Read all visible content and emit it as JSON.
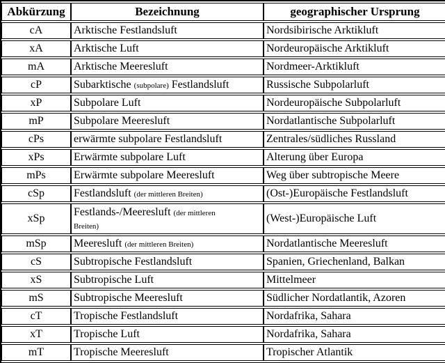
{
  "table": {
    "headers": [
      "Abkürzung",
      "Bezeichnung",
      "geographischer Ursprung"
    ],
    "rows": [
      {
        "abbr": "cA",
        "b1": "Arktische Festlandsluft",
        "bs": "",
        "b2": "",
        "origin": "Nordsibirische Arktikluft"
      },
      {
        "abbr": "xA",
        "b1": "Arktische Luft",
        "bs": "",
        "b2": "",
        "origin": "Nordeuropäische Arktikluft"
      },
      {
        "abbr": "mA",
        "b1": "Arktische Meeresluft",
        "bs": "",
        "b2": "",
        "origin": "Nordmeer-Arktikluft"
      },
      {
        "abbr": "cP",
        "b1": "Subarktische ",
        "bs": "(subpolare)",
        "b2": " Festlandsluft",
        "origin": "Russische Subpolarluft"
      },
      {
        "abbr": "xP",
        "b1": "Subpolare Luft",
        "bs": "",
        "b2": "",
        "origin": "Nordeuropäische Subpolarluft"
      },
      {
        "abbr": "mP",
        "b1": "Subpolare Meeresluft",
        "bs": "",
        "b2": "",
        "origin": "Nordatlantische Subpolarluft"
      },
      {
        "abbr": "cPs",
        "b1": "erwärmte subpolare Festlandsluft",
        "bs": "",
        "b2": "",
        "origin": "Zentrales/südliches Russland"
      },
      {
        "abbr": "xPs",
        "b1": "Erwärmte subpolare Luft",
        "bs": "",
        "b2": "",
        "origin": "Alterung über Europa"
      },
      {
        "abbr": "mPs",
        "b1": "Erwärmte subpolare Meeresluft",
        "bs": "",
        "b2": "",
        "origin": "Weg über subtropische Meere"
      },
      {
        "abbr": "cSp",
        "b1": "Festlandsluft ",
        "bs": "(der mittleren Breiten)",
        "b2": "",
        "origin": "(Ost-)Europäische Festlandsluft"
      },
      {
        "abbr": "xSp",
        "b1": "Festlands-/Meeresluft ",
        "bs": "(der mittleren Breiten)",
        "b2": "",
        "origin": "(West-)Europäische Luft"
      },
      {
        "abbr": "mSp",
        "b1": "Meeresluft ",
        "bs": "(der mittleren Breiten)",
        "b2": "",
        "origin": "Nordatlantische Meeresluft"
      },
      {
        "abbr": "cS",
        "b1": "Subtropische Festlandsluft",
        "bs": "",
        "b2": "",
        "origin": "Spanien, Griechenland, Balkan"
      },
      {
        "abbr": "xS",
        "b1": "Subtropische Luft",
        "bs": "",
        "b2": "",
        "origin": "Mittelmeer"
      },
      {
        "abbr": "mS",
        "b1": "Subtropische Meeresluft",
        "bs": "",
        "b2": "",
        "origin": "Südlicher Nordatlantik, Azoren"
      },
      {
        "abbr": "cT",
        "b1": "Tropische Festlandsluft",
        "bs": "",
        "b2": "",
        "origin": "Nordafrika, Sahara"
      },
      {
        "abbr": "xT",
        "b1": "Tropische Luft",
        "bs": "",
        "b2": "",
        "origin": "Nordafrika, Sahara"
      },
      {
        "abbr": "mT",
        "b1": "Tropische Meeresluft",
        "bs": "",
        "b2": "",
        "origin": "Tropischer Atlantik"
      }
    ],
    "colors": {
      "border": "#000000",
      "text": "#000000",
      "background": "#ffffff"
    }
  }
}
